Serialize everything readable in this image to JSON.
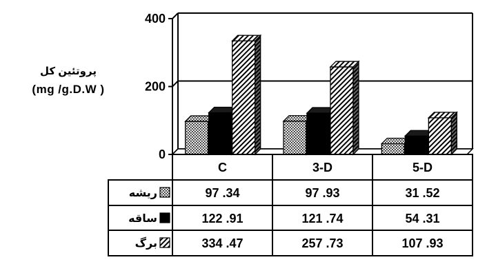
{
  "chart_data": {
    "type": "bar",
    "title": "",
    "ylabel_line1": "پروتئین کل",
    "ylabel_line2": "(mg /g.D.W )",
    "ylim": [
      0,
      400
    ],
    "yticks": [
      "0",
      "200",
      "400"
    ],
    "grid": true,
    "categories": [
      "C",
      "3-D",
      "5-D"
    ],
    "series": [
      {
        "name": "ریشه",
        "values": [
          97.34,
          97.93,
          31.52
        ],
        "labels": [
          "97 .34",
          "97 .93",
          "31 .52"
        ],
        "pattern": "dots"
      },
      {
        "name": "ساقه",
        "values": [
          122.91,
          121.74,
          54.31
        ],
        "labels": [
          "122 .91",
          "121 .74",
          "54 .31"
        ],
        "pattern": "solid"
      },
      {
        "name": "برگ",
        "values": [
          334.47,
          257.73,
          107.93
        ],
        "labels": [
          "334 .47",
          "257 .73",
          "107 .93"
        ],
        "pattern": "hatch"
      }
    ],
    "data_table": true
  }
}
